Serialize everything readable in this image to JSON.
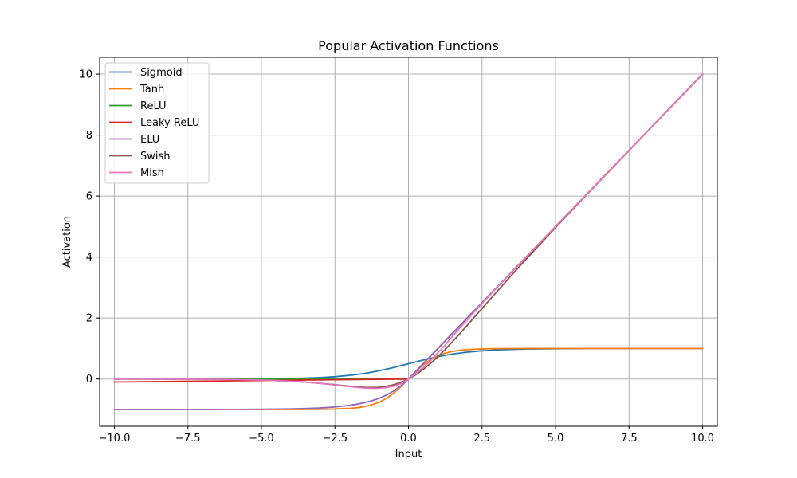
{
  "chart_data": {
    "type": "line",
    "title": "Popular Activation Functions",
    "xlabel": "Input",
    "ylabel": "Activation",
    "xlim": [
      -10.5,
      10.5
    ],
    "ylim": [
      -1.55,
      10.55
    ],
    "grid": true,
    "legend_position": "top-left",
    "x_ticks": [
      -10,
      -7.5,
      -5,
      -2.5,
      0,
      2.5,
      5,
      7.5,
      10
    ],
    "x_tick_labels": [
      "−10.0",
      "−7.5",
      "−5.0",
      "−2.5",
      "0.0",
      "2.5",
      "5.0",
      "7.5",
      "10.0"
    ],
    "y_ticks": [
      0,
      2,
      4,
      6,
      8,
      10
    ],
    "y_tick_labels": [
      "0",
      "2",
      "4",
      "6",
      "8",
      "10"
    ],
    "x": [
      -10,
      -9,
      -8,
      -7,
      -6,
      -5,
      -4,
      -3.5,
      -3,
      -2.5,
      -2,
      -1.75,
      -1.5,
      -1.25,
      -1,
      -0.75,
      -0.5,
      -0.25,
      0,
      0.25,
      0.5,
      0.75,
      1,
      1.25,
      1.5,
      1.75,
      2,
      2.5,
      3,
      3.5,
      4,
      5,
      6,
      7,
      8,
      9,
      10
    ],
    "series": [
      {
        "name": "Sigmoid",
        "color": "#1f77b4",
        "values": [
          4.54e-05,
          0.000123,
          0.000335,
          0.000911,
          0.00247,
          0.00669,
          0.018,
          0.0293,
          0.0474,
          0.0759,
          0.119,
          0.148,
          0.182,
          0.223,
          0.269,
          0.321,
          0.378,
          0.438,
          0.5,
          0.562,
          0.622,
          0.679,
          0.731,
          0.777,
          0.818,
          0.852,
          0.881,
          0.924,
          0.953,
          0.971,
          0.982,
          0.993,
          0.998,
          0.999,
          1.0,
          1.0,
          1.0
        ]
      },
      {
        "name": "Tanh",
        "color": "#ff7f0e",
        "values": [
          -1.0,
          -1.0,
          -1.0,
          -1.0,
          -1.0,
          -0.9999,
          -0.9993,
          -0.9982,
          -0.995,
          -0.9866,
          -0.964,
          -0.9414,
          -0.9051,
          -0.8483,
          -0.7616,
          -0.6351,
          -0.4621,
          -0.2449,
          0,
          0.2449,
          0.4621,
          0.6351,
          0.7616,
          0.8483,
          0.9051,
          0.9414,
          0.964,
          0.9866,
          0.995,
          0.9982,
          0.9993,
          0.9999,
          1.0,
          1.0,
          1.0,
          1.0,
          1.0
        ]
      },
      {
        "name": "ReLU",
        "color": "#2ca02c",
        "values": [
          0,
          0,
          0,
          0,
          0,
          0,
          0,
          0,
          0,
          0,
          0,
          0,
          0,
          0,
          0,
          0,
          0,
          0,
          0,
          0.25,
          0.5,
          0.75,
          1,
          1.25,
          1.5,
          1.75,
          2,
          2.5,
          3,
          3.5,
          4,
          5,
          6,
          7,
          8,
          9,
          10
        ]
      },
      {
        "name": "Leaky ReLU",
        "color": "#d62728",
        "values": [
          -0.1,
          -0.09,
          -0.08,
          -0.07,
          -0.06,
          -0.05,
          -0.04,
          -0.035,
          -0.03,
          -0.025,
          -0.02,
          -0.0175,
          -0.015,
          -0.0125,
          -0.01,
          -0.0075,
          -0.005,
          -0.0025,
          0,
          0.25,
          0.5,
          0.75,
          1,
          1.25,
          1.5,
          1.75,
          2,
          2.5,
          3,
          3.5,
          4,
          5,
          6,
          7,
          8,
          9,
          10
        ]
      },
      {
        "name": "ELU",
        "color": "#9467bd",
        "values": [
          -0.99995,
          -0.99988,
          -0.99966,
          -0.99909,
          -0.99752,
          -0.99326,
          -0.98168,
          -0.9698,
          -0.95021,
          -0.91792,
          -0.86466,
          -0.82623,
          -0.77687,
          -0.7135,
          -0.63212,
          -0.52763,
          -0.39347,
          -0.2212,
          0,
          0.25,
          0.5,
          0.75,
          1,
          1.25,
          1.5,
          1.75,
          2,
          2.5,
          3,
          3.5,
          4,
          5,
          6,
          7,
          8,
          9,
          10
        ]
      },
      {
        "name": "Swish",
        "color": "#8c564b",
        "values": [
          -0.000454,
          -0.00111,
          -0.00268,
          -0.00638,
          -0.01483,
          -0.03346,
          -0.07194,
          -0.10247,
          -0.14228,
          -0.18971,
          -0.23841,
          -0.25888,
          -0.27343,
          -0.27905,
          -0.26894,
          -0.2409,
          -0.18877,
          -0.1096,
          0,
          0.1404,
          0.3112,
          0.509,
          0.7311,
          0.9716,
          1.2268,
          1.4916,
          1.7616,
          2.3103,
          2.8577,
          3.3985,
          3.9281,
          4.9665,
          5.9852,
          6.9936,
          7.9973,
          8.9989,
          9.9995
        ]
      },
      {
        "name": "Mish",
        "color": "#e377c2",
        "values": [
          -0.000454,
          -0.00111,
          -0.00268,
          -0.00638,
          -0.01487,
          -0.03357,
          -0.07259,
          -0.10392,
          -0.14564,
          -0.19715,
          -0.25232,
          -0.27702,
          -0.29698,
          -0.30842,
          -0.3034,
          -0.28185,
          -0.23652,
          -0.15611,
          0,
          0.17689,
          0.37524,
          0.59227,
          0.8651,
          1.10948,
          1.40363,
          1.6775,
          1.94396,
          2.4756,
          2.9865,
          3.4936,
          3.9973,
          4.9995,
          5.9999,
          7.0,
          8.0,
          9.0,
          10.0
        ]
      }
    ]
  }
}
